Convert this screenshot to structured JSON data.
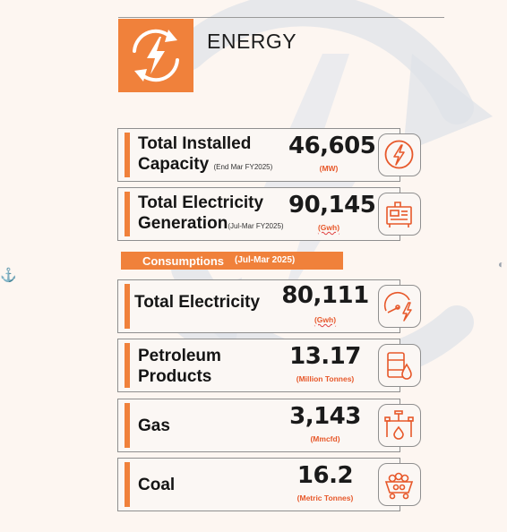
{
  "section": {
    "title": "ENERGY",
    "icon": "power-cycle-icon",
    "accent_color": "#f0813b"
  },
  "cards": [
    {
      "label_line1": "Total Installed",
      "label_line2": "Capacity",
      "note": "(End Mar FY2025)",
      "value": "46,605",
      "unit": "(MW)",
      "icon": "bolt-circle-icon"
    },
    {
      "label_line1": "Total Electricity",
      "label_line2": "Generation",
      "note": "(Jul-Mar FY2025)",
      "value": "90,145",
      "unit": "(Gwh)",
      "icon": "generator-icon"
    }
  ],
  "consumptions": {
    "label": "Consumptions",
    "period": "(Jul-Mar 2025)",
    "items": [
      {
        "label_line1": "Total Electricity",
        "label_line2": "",
        "value": "80,111",
        "unit": "(Gwh)",
        "icon": "meter-bolt-icon"
      },
      {
        "label_line1": "Petroleum",
        "label_line2": "Products",
        "value": "13.17",
        "unit": "(Million Tonnes)",
        "icon": "oil-barrel-icon"
      },
      {
        "label_line1": "Gas",
        "label_line2": "",
        "value": "3,143",
        "unit": "(Mmcfd)",
        "icon": "gas-pipe-flame-icon"
      },
      {
        "label_line1": "Coal",
        "label_line2": "",
        "value": "16.2",
        "unit": "(Metric Tonnes)",
        "icon": "coal-cart-icon"
      }
    ]
  }
}
